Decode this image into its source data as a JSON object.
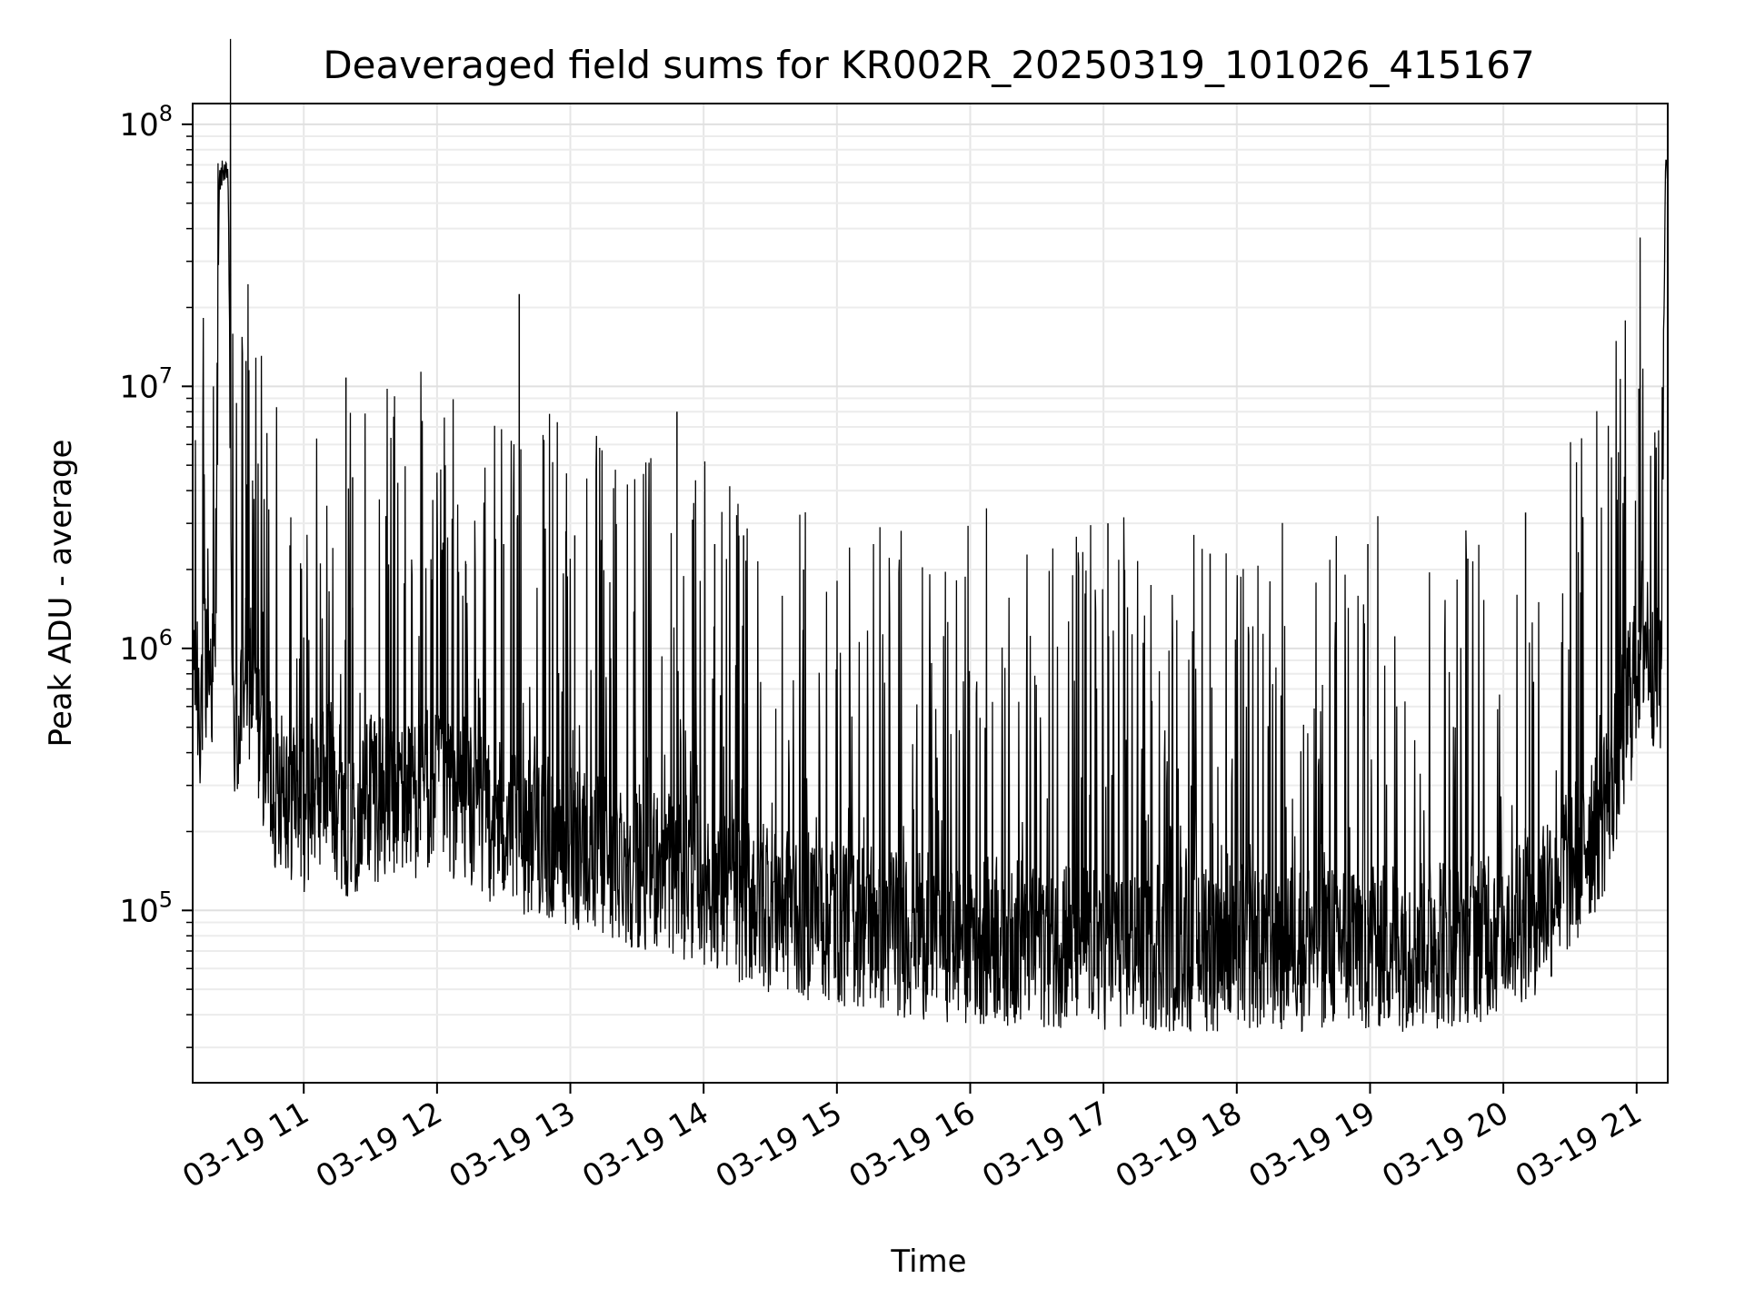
{
  "chart_data": {
    "type": "line",
    "title": "Deaveraged field sums for KR002R_20250319_101026_415167",
    "xlabel": "Time",
    "ylabel": "Peak ADU - average",
    "y_scale": "log",
    "ylim": [
      22000,
      120000000
    ],
    "xlim": [
      "2025-03-19T10:10",
      "2025-03-19T21:14"
    ],
    "grid": true,
    "line_color": "#000000",
    "x_ticks": [
      {
        "value": "2025-03-19T11:00",
        "label": "03-19 11"
      },
      {
        "value": "2025-03-19T12:00",
        "label": "03-19 12"
      },
      {
        "value": "2025-03-19T13:00",
        "label": "03-19 13"
      },
      {
        "value": "2025-03-19T14:00",
        "label": "03-19 14"
      },
      {
        "value": "2025-03-19T15:00",
        "label": "03-19 15"
      },
      {
        "value": "2025-03-19T16:00",
        "label": "03-19 16"
      },
      {
        "value": "2025-03-19T17:00",
        "label": "03-19 17"
      },
      {
        "value": "2025-03-19T18:00",
        "label": "03-19 18"
      },
      {
        "value": "2025-03-19T19:00",
        "label": "03-19 19"
      },
      {
        "value": "2025-03-19T20:00",
        "label": "03-19 20"
      },
      {
        "value": "2025-03-19T21:00",
        "label": "03-19 21"
      }
    ],
    "y_ticks": [
      {
        "value": 100000,
        "base": "10",
        "exp": "5"
      },
      {
        "value": 1000000,
        "base": "10",
        "exp": "6"
      },
      {
        "value": 10000000,
        "base": "10",
        "exp": "7"
      },
      {
        "value": 100000000,
        "base": "10",
        "exp": "8"
      }
    ],
    "series": [
      {
        "x": [
          "2025-03-19T10:10",
          "2025-03-19T10:13",
          "2025-03-19T10:16",
          "2025-03-19T10:20",
          "2025-03-19T10:22",
          "2025-03-19T10:24",
          "2025-03-19T10:26",
          "2025-03-19T10:28",
          "2025-03-19T10:30",
          "2025-03-19T10:33",
          "2025-03-19T10:37",
          "2025-03-19T10:40",
          "2025-03-19T10:43",
          "2025-03-19T10:46",
          "2025-03-19T10:50",
          "2025-03-19T10:55",
          "2025-03-19T11:00",
          "2025-03-19T11:10",
          "2025-03-19T11:20",
          "2025-03-19T11:30",
          "2025-03-19T11:45",
          "2025-03-19T12:00",
          "2025-03-19T12:15",
          "2025-03-19T12:30",
          "2025-03-19T12:45",
          "2025-03-19T13:00",
          "2025-03-19T13:15",
          "2025-03-19T13:30",
          "2025-03-19T13:45",
          "2025-03-19T14:00",
          "2025-03-19T14:20",
          "2025-03-19T14:40",
          "2025-03-19T15:00",
          "2025-03-19T15:30",
          "2025-03-19T16:00",
          "2025-03-19T16:30",
          "2025-03-19T17:00",
          "2025-03-19T17:30",
          "2025-03-19T18:00",
          "2025-03-19T18:30",
          "2025-03-19T19:00",
          "2025-03-19T19:30",
          "2025-03-19T20:00",
          "2025-03-19T20:20",
          "2025-03-19T20:35",
          "2025-03-19T20:45",
          "2025-03-19T20:52",
          "2025-03-19T20:58",
          "2025-03-19T21:02",
          "2025-03-19T21:06",
          "2025-03-19T21:09",
          "2025-03-19T21:11",
          "2025-03-19T21:13",
          "2025-03-19T21:14"
        ],
        "y": [
          1200000,
          700000,
          1000000,
          900000,
          60000000,
          68000000,
          60000000,
          700000,
          500000,
          1000000,
          900000,
          600000,
          500000,
          350000,
          380000,
          320000,
          300000,
          400000,
          280000,
          330000,
          330000,
          360000,
          300000,
          260000,
          240000,
          220000,
          200000,
          180000,
          170000,
          160000,
          130000,
          120000,
          110000,
          100000,
          95000,
          92000,
          90000,
          88000,
          88000,
          88000,
          88000,
          90000,
          100000,
          130000,
          200000,
          280000,
          500000,
          800000,
          1300000,
          1200000,
          950000,
          950000,
          78000000,
          65000000
        ]
      }
    ],
    "spikes": [
      {
        "x": "2025-03-19T10:34",
        "y": 12500000
      },
      {
        "x": "2025-03-19T11:19",
        "y": 10800000
      },
      {
        "x": "2025-03-19T11:22",
        "y": 4500000
      },
      {
        "x": "2025-03-19T11:37",
        "y": 3200000
      },
      {
        "x": "2025-03-19T12:13",
        "y": 2100000
      },
      {
        "x": "2025-03-19T12:30",
        "y": 2500000
      },
      {
        "x": "2025-03-19T12:37",
        "y": 22500000
      },
      {
        "x": "2025-03-19T12:58",
        "y": 2800000
      },
      {
        "x": "2025-03-19T13:02",
        "y": 2700000
      },
      {
        "x": "2025-03-19T13:48",
        "y": 8000000
      },
      {
        "x": "2025-03-19T13:55",
        "y": 3100000
      },
      {
        "x": "2025-03-19T14:05",
        "y": 2500000
      },
      {
        "x": "2025-03-19T14:18",
        "y": 2700000
      },
      {
        "x": "2025-03-19T14:45",
        "y": 2000000
      },
      {
        "x": "2025-03-19T17:02",
        "y": 3000000
      },
      {
        "x": "2025-03-19T17:48",
        "y": 2300000
      },
      {
        "x": "2025-03-19T18:59",
        "y": 2500000
      },
      {
        "x": "2025-03-19T19:44",
        "y": 2200000
      },
      {
        "x": "2025-03-19T20:10",
        "y": 3300000
      },
      {
        "x": "2025-03-19T21:01",
        "y": 9800000
      }
    ]
  }
}
